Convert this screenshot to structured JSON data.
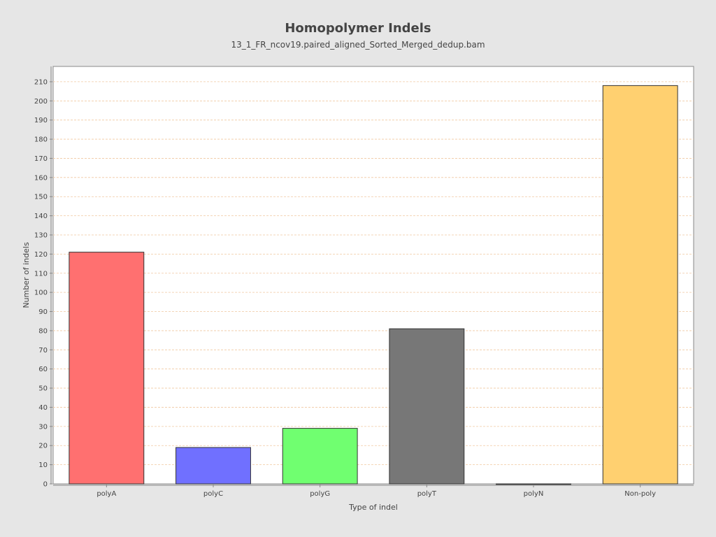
{
  "chart_data": {
    "type": "bar",
    "title": "Homopolymer Indels",
    "subtitle": "13_1_FR_ncov19.paired_aligned_Sorted_Merged_dedup.bam",
    "xlabel": "Type of indel",
    "ylabel": "Number of indels",
    "categories": [
      "polyA",
      "polyC",
      "polyG",
      "polyT",
      "polyN",
      "Non-poly"
    ],
    "values": [
      121,
      19,
      29,
      81,
      0,
      208
    ],
    "colors": [
      "#ff7070",
      "#7070ff",
      "#70ff70",
      "#777777",
      "#ffffff",
      "#ffd070"
    ],
    "ylim": [
      0,
      218
    ],
    "yticks": [
      0,
      10,
      20,
      30,
      40,
      50,
      60,
      70,
      80,
      90,
      100,
      110,
      120,
      130,
      140,
      150,
      160,
      170,
      180,
      190,
      200,
      210
    ],
    "grid": true,
    "grid_color": "#f0c8a0",
    "plot_background": "#ffffff",
    "page_background": "#e6e6e6"
  }
}
